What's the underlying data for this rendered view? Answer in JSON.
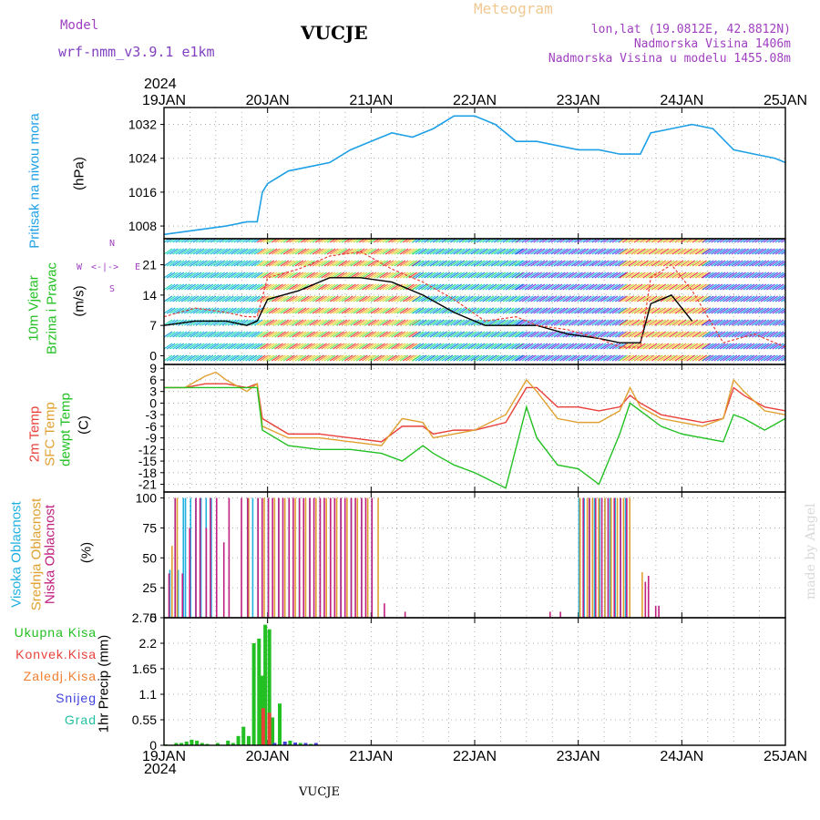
{
  "header": {
    "model_label": "Model",
    "model_name": "wrf-nmm_v3.9.1  e1km",
    "station": "VUCJE",
    "meteogram": "Meteogram",
    "lonlat": "lon,lat (19.0812E, 42.8812N)",
    "altitude": "Nadmorska Visina 1406m",
    "model_altitude": "Nadmorska Visina u modelu 1455.08m",
    "year_top": "2024",
    "year_bottom": "2024",
    "footer_station": "VUCJE",
    "watermark": "made by Angel"
  },
  "colors": {
    "pressure": "#1ea0e6",
    "temp2m": "#e8413a",
    "sfc": "#e0a030",
    "dewpt": "#22c022",
    "high_cloud": "#20b0e0",
    "mid_cloud": "#e0a030",
    "low_cloud": "#c02080",
    "total_precip": "#22c022",
    "conv_precip": "#e8413a",
    "frozen_precip": "#f08030",
    "snow": "#4040e0",
    "hail": "#20c0a0",
    "header_purple": "#a040c0",
    "meteogram_orange": "#f0c890"
  },
  "chart_data": [
    {
      "type": "line",
      "panel": "pressure",
      "ylabel_lines": [
        "Pritisak na nivou mora"
      ],
      "unit": "(hPa)",
      "x_ticks": [
        "19JAN",
        "20JAN",
        "21JAN",
        "22JAN",
        "23JAN",
        "24JAN",
        "25JAN"
      ],
      "yticks": [
        1008,
        1016,
        1024,
        1032
      ],
      "ylim": [
        1005,
        1036
      ],
      "series": [
        {
          "color_key": "pressure",
          "x": [
            0,
            0.3,
            0.6,
            0.8,
            0.9,
            0.95,
            1.0,
            1.2,
            1.4,
            1.6,
            1.8,
            2.0,
            2.2,
            2.4,
            2.6,
            2.8,
            3.0,
            3.2,
            3.4,
            3.6,
            3.8,
            4.0,
            4.2,
            4.4,
            4.6,
            4.7,
            4.9,
            5.1,
            5.3,
            5.5,
            5.7,
            5.9,
            6.0
          ],
          "y": [
            1006,
            1007,
            1008,
            1009,
            1009,
            1016,
            1018,
            1021,
            1022,
            1023,
            1026,
            1028,
            1030,
            1029,
            1031,
            1034,
            1034,
            1032,
            1028,
            1028,
            1027,
            1026,
            1026,
            1025,
            1025,
            1030,
            1031,
            1032,
            1031,
            1026,
            1025,
            1024,
            1023
          ]
        }
      ]
    },
    {
      "type": "line",
      "panel": "wind",
      "ylabel_lines": [
        "10m Vjetar",
        "Brzina i Pravac"
      ],
      "unit": "(m/s)",
      "compass": {
        "n": "N",
        "s": "S",
        "w": "W",
        "e": "E",
        "arrows": "<-|->"
      },
      "yticks": [
        0,
        7,
        14,
        21
      ],
      "ylim": [
        -2,
        27
      ],
      "series": [
        {
          "name": "mean",
          "color": "#000000",
          "x": [
            0,
            0.3,
            0.6,
            0.8,
            0.9,
            1.0,
            1.3,
            1.6,
            1.9,
            2.2,
            2.5,
            2.8,
            3.1,
            3.4,
            3.6,
            3.9,
            4.2,
            4.4,
            4.6,
            4.7,
            4.9,
            5.1
          ],
          "y": [
            7,
            8,
            8,
            7,
            8,
            13,
            15,
            18,
            18,
            17,
            14,
            10,
            7,
            7,
            7,
            5,
            4,
            3,
            3,
            12,
            14,
            8
          ]
        },
        {
          "name": "gust",
          "color": "#e8413a",
          "x": [
            0,
            0.3,
            0.6,
            0.8,
            0.9,
            1.0,
            1.3,
            1.6,
            1.9,
            2.2,
            2.5,
            2.8,
            3.1,
            3.4,
            3.6,
            3.9,
            4.2,
            4.4,
            4.6,
            4.7,
            4.9,
            5.1,
            5.4,
            5.7,
            6.0
          ],
          "y": [
            9,
            11,
            10,
            9,
            9,
            18,
            20,
            23,
            24,
            20,
            17,
            13,
            8,
            9,
            7,
            6,
            4,
            2,
            2,
            18,
            21,
            15,
            3,
            5,
            2
          ]
        }
      ],
      "barb_groups": [
        {
          "x_start": 0.0,
          "x_end": 0.9,
          "colors": [
            "#20c0e0",
            "#30e0b0",
            "#20a0e0"
          ]
        },
        {
          "x_start": 0.9,
          "x_end": 2.4,
          "colors": [
            "#f04040",
            "#f08040",
            "#f0d040",
            "#c0e040",
            "#60e060"
          ]
        },
        {
          "x_start": 2.4,
          "x_end": 3.4,
          "colors": [
            "#20c0e0",
            "#30e080",
            "#2080e0"
          ]
        },
        {
          "x_start": 3.4,
          "x_end": 4.4,
          "colors": [
            "#8040e0",
            "#4060f0",
            "#30c0e0"
          ]
        },
        {
          "x_start": 4.4,
          "x_end": 5.2,
          "colors": [
            "#f0d040",
            "#f08040",
            "#c0e040",
            "#f04040"
          ]
        },
        {
          "x_start": 5.2,
          "x_end": 6.0,
          "colors": [
            "#8040e0",
            "#4060f0",
            "#20a0e0"
          ]
        }
      ]
    },
    {
      "type": "line",
      "panel": "temperature",
      "ylabel_lines": [
        "2m Temp",
        "SFC Temp",
        "dewpt Temp"
      ],
      "unit": "(C)",
      "yticks": [
        9,
        6,
        3,
        0,
        -3,
        -6,
        -9,
        -12,
        -15,
        -18,
        -21
      ],
      "ylim": [
        -23,
        10
      ],
      "series": [
        {
          "name": "2m Temp",
          "color_key": "temp2m",
          "x": [
            0,
            0.2,
            0.4,
            0.5,
            0.6,
            0.8,
            0.9,
            0.95,
            1.2,
            1.5,
            1.8,
            2.1,
            2.3,
            2.5,
            2.6,
            2.8,
            3.0,
            3.3,
            3.5,
            3.6,
            3.8,
            4.0,
            4.2,
            4.4,
            4.5,
            4.6,
            4.8,
            5.0,
            5.2,
            5.4,
            5.5,
            5.6,
            5.8,
            6.0
          ],
          "y": [
            4,
            4,
            5,
            5,
            5,
            4,
            5,
            -4,
            -8,
            -8,
            -9,
            -10,
            -6,
            -6,
            -8,
            -7,
            -7,
            -5,
            4,
            4,
            -1,
            -1,
            -2,
            -1,
            2,
            0,
            -3,
            -4,
            -5,
            -4,
            4,
            2,
            -1,
            -2
          ]
        },
        {
          "name": "SFC Temp",
          "color_key": "sfc",
          "x": [
            0,
            0.2,
            0.4,
            0.5,
            0.6,
            0.8,
            0.9,
            0.95,
            1.2,
            1.5,
            1.8,
            2.1,
            2.3,
            2.5,
            2.6,
            2.8,
            3.0,
            3.3,
            3.5,
            3.6,
            3.8,
            4.0,
            4.2,
            4.4,
            4.5,
            4.6,
            4.8,
            5.0,
            5.2,
            5.4,
            5.5,
            5.6,
            5.8,
            6.0
          ],
          "y": [
            4,
            4,
            7,
            8,
            6,
            3,
            5,
            -6,
            -9,
            -9,
            -10,
            -11,
            -4,
            -5,
            -9,
            -8,
            -7,
            -3,
            6,
            3,
            -4,
            -5,
            -5,
            -2,
            4,
            -1,
            -4,
            -5,
            -6,
            -4,
            6,
            3,
            -2,
            -3
          ]
        },
        {
          "name": "dewpt Temp",
          "color_key": "dewpt",
          "x": [
            0,
            0.2,
            0.4,
            0.5,
            0.6,
            0.8,
            0.9,
            0.95,
            1.2,
            1.5,
            1.8,
            2.1,
            2.3,
            2.5,
            2.6,
            2.8,
            3.0,
            3.3,
            3.5,
            3.6,
            3.8,
            4.0,
            4.2,
            4.4,
            4.5,
            4.6,
            4.8,
            5.0,
            5.2,
            5.4,
            5.5,
            5.6,
            5.8,
            6.0
          ],
          "y": [
            4,
            4,
            4,
            4,
            4,
            4,
            4,
            -7,
            -11,
            -12,
            -12,
            -13,
            -15,
            -11,
            -13,
            -16,
            -18,
            -22,
            -1,
            -9,
            -16,
            -17,
            -21,
            -8,
            0,
            -2,
            -6,
            -8,
            -9,
            -10,
            -3,
            -4,
            -7,
            -4
          ]
        }
      ]
    },
    {
      "type": "bar",
      "panel": "cloud",
      "ylabel_lines": [
        "Visoka Oblacnost",
        "Srednja Oblacnost",
        "Niska Oblacnost"
      ],
      "unit": "(%)",
      "yticks": [
        0,
        25,
        50,
        75,
        100
      ],
      "ylim": [
        0,
        105
      ],
      "series": [
        {
          "name": "Visoka Oblacnost",
          "color_key": "high_cloud",
          "x": [
            0.05,
            0.1,
            0.13,
            0.18,
            0.2,
            0.25,
            0.3,
            0.35,
            0.4,
            0.45,
            0.8,
            0.85,
            0.9,
            1.0,
            1.1,
            1.2,
            1.3,
            1.4,
            1.5,
            1.6,
            1.7,
            1.8,
            1.9,
            2.0,
            4.0,
            4.05,
            4.1,
            4.15,
            4.2,
            4.25,
            4.3,
            4.35,
            4.4,
            4.45
          ],
          "y": [
            40,
            100,
            40,
            100,
            100,
            100,
            100,
            100,
            100,
            100,
            100,
            100,
            100,
            100,
            100,
            100,
            100,
            100,
            100,
            100,
            100,
            100,
            100,
            100,
            100,
            100,
            100,
            100,
            100,
            100,
            100,
            100,
            100,
            100
          ]
        },
        {
          "name": "Srednja Oblacnost",
          "color_key": "mid_cloud",
          "x": [
            0.06,
            0.11,
            0.8,
            0.95,
            1.05,
            1.15,
            1.25,
            1.35,
            1.45,
            1.55,
            1.65,
            1.75,
            1.85,
            1.95,
            2.05,
            4.0,
            4.07,
            4.12,
            4.18,
            4.24,
            4.3,
            4.36,
            4.42,
            4.48,
            4.6
          ],
          "y": [
            60,
            100,
            100,
            100,
            100,
            100,
            100,
            100,
            100,
            100,
            100,
            100,
            100,
            100,
            100,
            100,
            100,
            100,
            100,
            100,
            100,
            100,
            100,
            100,
            38
          ]
        },
        {
          "name": "Niska Oblacnost",
          "color_key": "low_cloud",
          "x": [
            0.02,
            0.08,
            0.15,
            0.22,
            0.28,
            0.32,
            0.38,
            0.42,
            0.48,
            0.55,
            0.6,
            0.72,
            0.78,
            0.88,
            0.92,
            0.98,
            1.02,
            1.08,
            1.12,
            1.18,
            1.22,
            1.28,
            1.32,
            1.38,
            1.42,
            1.48,
            1.52,
            1.58,
            1.62,
            1.68,
            1.72,
            1.78,
            1.82,
            1.88,
            1.92,
            1.98,
            2.1,
            2.3,
            3.7,
            3.8,
            4.02,
            4.08,
            4.14,
            4.2,
            4.26,
            4.32,
            4.38,
            4.44,
            4.62,
            4.65,
            4.72,
            4.75
          ],
          "y": [
            37,
            100,
            37,
            75,
            100,
            100,
            75,
            100,
            100,
            63,
            100,
            100,
            100,
            100,
            100,
            100,
            100,
            100,
            100,
            100,
            100,
            100,
            100,
            100,
            100,
            100,
            100,
            100,
            100,
            100,
            100,
            100,
            100,
            100,
            100,
            100,
            12,
            5,
            5,
            5,
            100,
            100,
            100,
            100,
            100,
            100,
            100,
            100,
            30,
            35,
            10,
            10
          ]
        }
      ]
    },
    {
      "type": "bar",
      "panel": "precip",
      "legend": [
        "Ukupna Kisa",
        "Konvek.Kisa",
        "Zaledj.Kisa",
        "Snijeg",
        "Grad"
      ],
      "unit": "1hr Precip (mm)",
      "yticks": [
        0,
        0.55,
        1.1,
        1.65,
        2.2,
        2.75
      ],
      "ylim": [
        0,
        2.75
      ],
      "series": [
        {
          "name": "Ukupna Kisa",
          "color_key": "total_precip",
          "x": [
            0.0,
            0.1,
            0.15,
            0.2,
            0.25,
            0.3,
            0.35,
            0.4,
            0.5,
            0.6,
            0.65,
            0.7,
            0.75,
            0.8,
            0.85,
            0.9,
            0.93,
            0.96,
            1.0,
            1.03,
            1.1,
            1.2,
            1.3,
            1.4
          ],
          "y": [
            0.02,
            0.05,
            0.05,
            0.08,
            0.12,
            0.1,
            0.05,
            0.03,
            0.05,
            0.1,
            0.05,
            0.2,
            0.4,
            0.2,
            2.2,
            2.3,
            1.5,
            2.6,
            2.5,
            0.6,
            0.9,
            0.1,
            0.05,
            0.03
          ]
        },
        {
          "name": "Konvek.Kisa",
          "color_key": "conv_precip",
          "x": [
            0.94,
            1.0
          ],
          "y": [
            0.8,
            0.7
          ]
        },
        {
          "name": "Snijeg",
          "color_key": "snow",
          "x": [
            1.05,
            1.15,
            1.25,
            1.35,
            1.45
          ],
          "y": [
            0.05,
            0.08,
            0.06,
            0.05,
            0.05
          ]
        }
      ]
    }
  ]
}
